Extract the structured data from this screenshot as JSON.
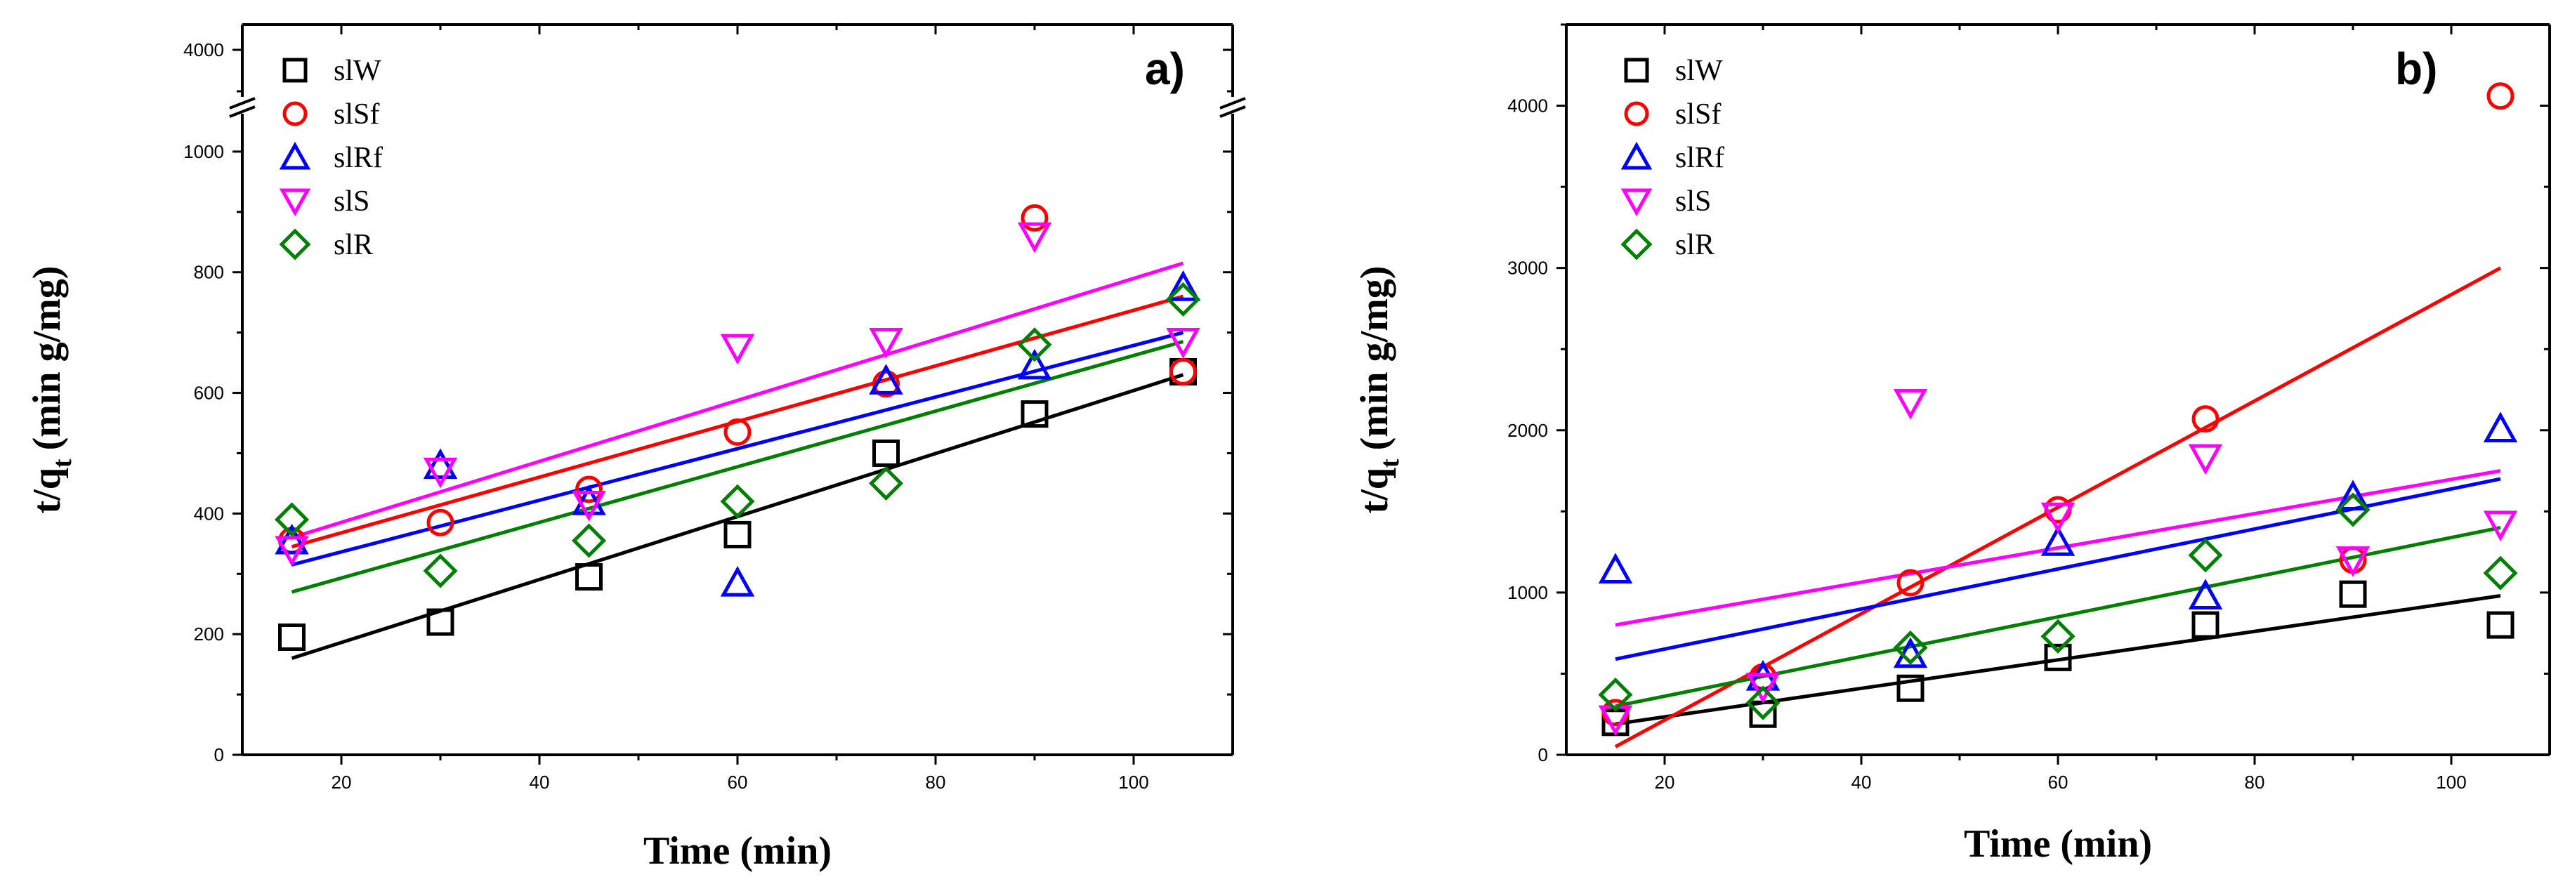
{
  "chart_data": [
    {
      "type": "scatter",
      "panel": "a)",
      "xlabel": "Time (min)",
      "ylabel_main": "t/q",
      "ylabel_sub": "t",
      "ylabel_rest": "(min g/mg)",
      "xlim": [
        10,
        110
      ],
      "ylim": [
        0,
        1100
      ],
      "xticks": [
        20,
        40,
        60,
        80,
        100
      ],
      "yticks": [
        0,
        200,
        400,
        600,
        800,
        1000
      ],
      "ybreak": {
        "top_value": 4000,
        "top_label": "4000"
      },
      "series": [
        {
          "name": "slW",
          "marker": "square",
          "color": "#000000",
          "x": [
            15,
            30,
            45,
            60,
            75,
            90,
            105
          ],
          "y": [
            195,
            220,
            295,
            365,
            500,
            565,
            635
          ],
          "fit": [
            [
              15,
              160
            ],
            [
              105,
              630
            ]
          ]
        },
        {
          "name": "slSf",
          "marker": "circle",
          "color": "#ff0000",
          "x": [
            15,
            30,
            45,
            60,
            75,
            90,
            105
          ],
          "y": [
            355,
            385,
            440,
            535,
            615,
            890,
            635
          ],
          "fit": [
            [
              15,
              345
            ],
            [
              105,
              760
            ]
          ]
        },
        {
          "name": "slRf",
          "marker": "triangle-up",
          "color": "#0000ff",
          "x": [
            15,
            30,
            45,
            60,
            75,
            90,
            105
          ],
          "y": [
            355,
            480,
            420,
            285,
            620,
            645,
            775
          ],
          "fit": [
            [
              15,
              315
            ],
            [
              105,
              700
            ]
          ]
        },
        {
          "name": "slS",
          "marker": "triangle-down",
          "color": "#ff00ff",
          "x": [
            15,
            30,
            45,
            60,
            75,
            90,
            105
          ],
          "y": [
            340,
            470,
            415,
            675,
            685,
            860,
            685
          ],
          "fit": [
            [
              15,
              360
            ],
            [
              105,
              815
            ]
          ]
        },
        {
          "name": "slR",
          "marker": "diamond",
          "color": "#008000",
          "x": [
            15,
            30,
            45,
            60,
            75,
            90,
            105
          ],
          "y": [
            390,
            305,
            355,
            420,
            450,
            680,
            755
          ],
          "fit": [
            [
              15,
              270
            ],
            [
              105,
              685
            ]
          ]
        }
      ]
    },
    {
      "type": "scatter",
      "panel": "b)",
      "xlabel": "Time (min)",
      "ylabel_main": "t/q",
      "ylabel_sub": "t",
      "ylabel_rest": "(min g/mg)",
      "xlim": [
        10,
        110
      ],
      "ylim": [
        0,
        4500
      ],
      "xticks": [
        20,
        40,
        60,
        80,
        100
      ],
      "yticks": [
        0,
        1000,
        2000,
        3000,
        4000
      ],
      "series": [
        {
          "name": "slW",
          "marker": "square",
          "color": "#000000",
          "x": [
            15,
            30,
            45,
            60,
            75,
            90,
            105
          ],
          "y": [
            200,
            250,
            410,
            600,
            800,
            990,
            800
          ],
          "fit": [
            [
              15,
              190
            ],
            [
              105,
              980
            ]
          ]
        },
        {
          "name": "slSf",
          "marker": "circle",
          "color": "#ff0000",
          "x": [
            15,
            30,
            45,
            60,
            75,
            90,
            105
          ],
          "y": [
            260,
            480,
            1060,
            1510,
            2070,
            1200,
            4060
          ],
          "fit": [
            [
              15,
              50
            ],
            [
              105,
              3000
            ]
          ]
        },
        {
          "name": "slRf",
          "marker": "triangle-up",
          "color": "#0000ff",
          "x": [
            15,
            30,
            45,
            60,
            75,
            90,
            105
          ],
          "y": [
            1140,
            480,
            620,
            1310,
            980,
            1590,
            2010
          ],
          "fit": [
            [
              15,
              590
            ],
            [
              105,
              1700
            ]
          ]
        },
        {
          "name": "slS",
          "marker": "triangle-down",
          "color": "#ff00ff",
          "x": [
            15,
            30,
            45,
            60,
            75,
            90,
            105
          ],
          "y": [
            220,
            420,
            2170,
            1470,
            1830,
            1200,
            1420
          ],
          "fit": [
            [
              15,
              800
            ],
            [
              105,
              1750
            ]
          ]
        },
        {
          "name": "slR",
          "marker": "diamond",
          "color": "#008000",
          "x": [
            15,
            30,
            45,
            60,
            75,
            90,
            105
          ],
          "y": [
            370,
            320,
            660,
            730,
            1230,
            1510,
            1120
          ],
          "fit": [
            [
              15,
              300
            ],
            [
              105,
              1400
            ]
          ]
        }
      ]
    }
  ]
}
